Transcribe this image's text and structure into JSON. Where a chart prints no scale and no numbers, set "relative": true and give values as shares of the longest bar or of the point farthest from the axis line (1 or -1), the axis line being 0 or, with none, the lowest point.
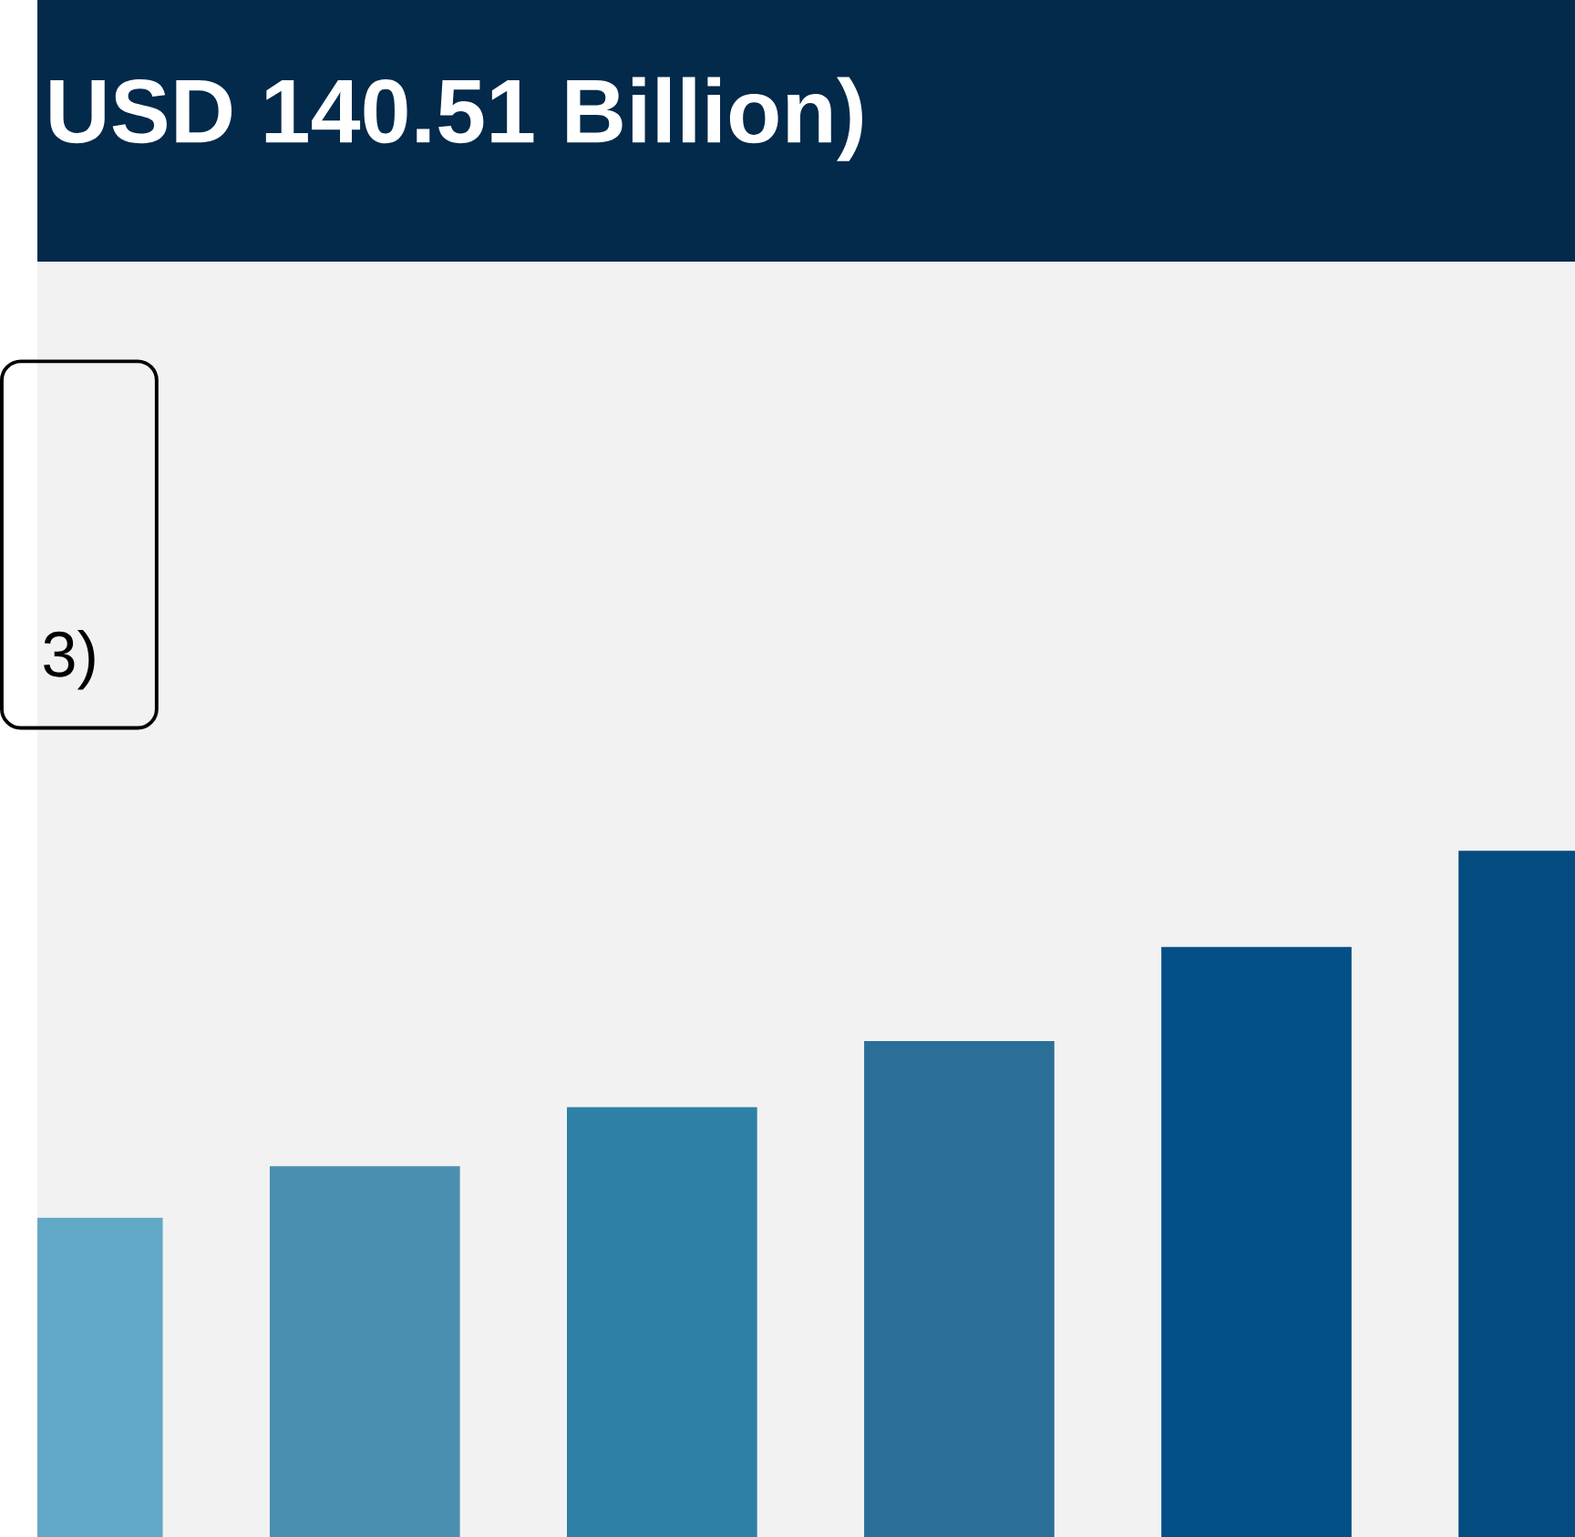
{
  "chart_data": {
    "type": "bar",
    "title": "USD 140.51 Billion)",
    "annotations": [
      "3)"
    ],
    "categories": [
      null,
      null,
      null,
      null,
      null,
      null
    ],
    "values": [
      0.466,
      0.541,
      0.627,
      0.723,
      0.86,
      1
    ],
    "colors": [
      "#62a8c7",
      "#4a8fb0",
      "#2e80a6",
      "#2b6f98",
      "#044f88",
      "#044b80"
    ],
    "relative": true
  }
}
